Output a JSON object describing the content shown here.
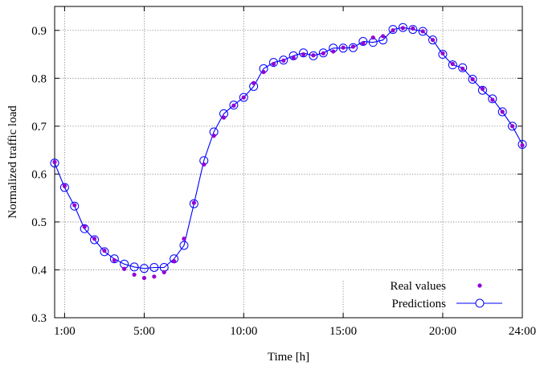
{
  "chart_data": {
    "type": "scatter",
    "title": "",
    "xlabel": "Time [h]",
    "ylabel": "Normalized traffic load",
    "xlim": [
      0.5,
      24
    ],
    "ylim": [
      0.3,
      0.95
    ],
    "x_ticks": [
      1,
      5,
      10,
      15,
      20,
      24
    ],
    "x_tick_labels": [
      "1:00",
      "5:00",
      "10:00",
      "15:00",
      "20:00",
      "24:00"
    ],
    "y_ticks": [
      0.3,
      0.4,
      0.5,
      0.6,
      0.7,
      0.8,
      0.9
    ],
    "y_tick_labels": [
      "0.3",
      "0.4",
      "0.5",
      "0.6",
      "0.7",
      "0.8",
      "0.9"
    ],
    "grid": true,
    "legend_position": "bottom-right",
    "colors": {
      "real": "#9400d3",
      "pred": "#0000ff"
    },
    "series": [
      {
        "name": "Real values",
        "style": "points",
        "x": [
          0.5,
          1,
          1.5,
          2,
          2.5,
          3,
          3.5,
          4,
          4.5,
          5,
          5.5,
          6,
          6.5,
          7,
          7.5,
          8,
          8.5,
          9,
          9.5,
          10,
          10.5,
          11,
          11.5,
          12,
          12.5,
          13,
          13.5,
          14,
          14.5,
          15,
          15.5,
          16,
          16.5,
          17,
          17.5,
          18,
          18.5,
          19,
          19.5,
          20,
          20.5,
          21,
          21.5,
          22,
          22.5,
          23,
          23.5,
          24
        ],
        "y": [
          0.625,
          0.575,
          0.535,
          0.49,
          0.465,
          0.44,
          0.42,
          0.402,
          0.39,
          0.383,
          0.386,
          0.395,
          0.418,
          0.465,
          0.54,
          0.62,
          0.68,
          0.718,
          0.743,
          0.76,
          0.79,
          0.813,
          0.83,
          0.837,
          0.843,
          0.85,
          0.848,
          0.852,
          0.856,
          0.864,
          0.866,
          0.873,
          0.885,
          0.888,
          0.9,
          0.905,
          0.904,
          0.898,
          0.88,
          0.852,
          0.83,
          0.82,
          0.798,
          0.778,
          0.755,
          0.73,
          0.7,
          0.66
        ]
      },
      {
        "name": "Predictions",
        "style": "line-circles",
        "x": [
          0.5,
          1,
          1.5,
          2,
          2.5,
          3,
          3.5,
          4,
          4.5,
          5,
          5.5,
          6,
          6.5,
          7,
          7.5,
          8,
          8.5,
          9,
          9.5,
          10,
          10.5,
          11,
          11.5,
          12,
          12.5,
          13,
          13.5,
          14,
          14.5,
          15,
          15.5,
          16,
          16.5,
          17,
          17.5,
          18,
          18.5,
          19,
          19.5,
          20,
          20.5,
          21,
          21.5,
          22,
          22.5,
          23,
          23.5,
          24
        ],
        "y": [
          0.623,
          0.572,
          0.533,
          0.486,
          0.463,
          0.438,
          0.423,
          0.412,
          0.406,
          0.403,
          0.405,
          0.405,
          0.423,
          0.451,
          0.538,
          0.628,
          0.688,
          0.726,
          0.744,
          0.76,
          0.783,
          0.82,
          0.833,
          0.838,
          0.847,
          0.853,
          0.847,
          0.853,
          0.863,
          0.863,
          0.864,
          0.877,
          0.875,
          0.88,
          0.902,
          0.906,
          0.902,
          0.898,
          0.88,
          0.85,
          0.828,
          0.822,
          0.798,
          0.775,
          0.757,
          0.73,
          0.7,
          0.662
        ]
      }
    ]
  }
}
